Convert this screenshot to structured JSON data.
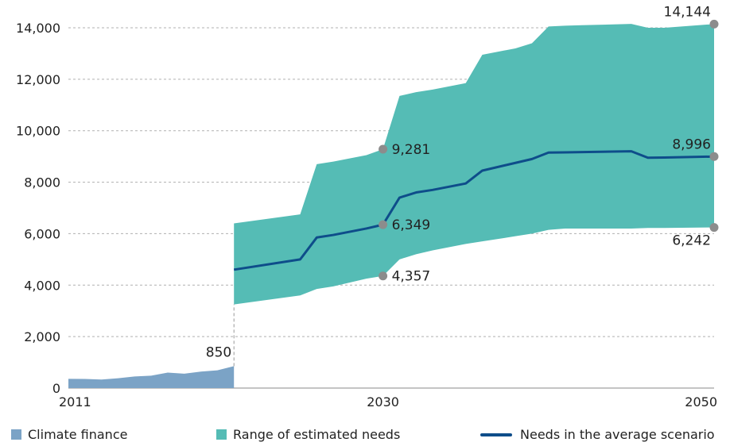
{
  "chart_data": {
    "type": "area",
    "title": "",
    "xlabel": "",
    "ylabel": "",
    "xlim": [
      2011,
      2050
    ],
    "ylim": [
      0,
      14000
    ],
    "x_ticks": [
      "2011",
      "2030",
      "2050"
    ],
    "y_ticks": [
      "0",
      "2,000",
      "4,000",
      "6,000",
      "8,000",
      "10,000",
      "12,000",
      "14,000"
    ],
    "grid": "horizontal dotted",
    "legend_position": "bottom",
    "series": [
      {
        "name": "Climate finance",
        "type": "area",
        "color": "#7ba3c6",
        "x": [
          2011,
          2012,
          2013,
          2014,
          2015,
          2016,
          2017,
          2018,
          2019,
          2020,
          2021
        ],
        "y": [
          360,
          355,
          330,
          380,
          450,
          480,
          600,
          560,
          640,
          690,
          850
        ]
      },
      {
        "name": "Range of estimated needs",
        "type": "range",
        "color": "#55bcb5",
        "x": [
          2021,
          2025,
          2026,
          2027,
          2029,
          2030,
          2031,
          2032,
          2033,
          2035,
          2036,
          2038,
          2039,
          2040,
          2041,
          2042,
          2045,
          2046,
          2047,
          2050
        ],
        "upper": [
          6400,
          6750,
          8700,
          8800,
          9050,
          9281,
          11350,
          11500,
          11600,
          11850,
          12950,
          13200,
          13400,
          14050,
          14080,
          14100,
          14150,
          14000,
          14000,
          14144
        ],
        "lower": [
          3250,
          3600,
          3850,
          3950,
          4250,
          4357,
          5000,
          5200,
          5350,
          5600,
          5700,
          5900,
          6000,
          6150,
          6200,
          6200,
          6200,
          6220,
          6220,
          6242
        ]
      },
      {
        "name": "Needs in the average scenario",
        "type": "line",
        "color": "#0e4d8a",
        "x": [
          2021,
          2025,
          2026,
          2027,
          2029,
          2030,
          2031,
          2032,
          2033,
          2035,
          2036,
          2038,
          2039,
          2040,
          2041,
          2045,
          2046,
          2047,
          2050
        ],
        "y": [
          4600,
          5000,
          5850,
          5950,
          6200,
          6349,
          7400,
          7600,
          7700,
          7950,
          8450,
          8750,
          8900,
          9150,
          9160,
          9200,
          8950,
          8960,
          8996
        ]
      }
    ],
    "annotations": [
      {
        "label": "850",
        "x": 2021,
        "y": 850,
        "marker": false,
        "anchor": "above-left"
      },
      {
        "label": "9,281",
        "x": 2030,
        "y": 9281,
        "marker": true,
        "anchor": "right"
      },
      {
        "label": "6,349",
        "x": 2030,
        "y": 6349,
        "marker": true,
        "anchor": "right"
      },
      {
        "label": "4,357",
        "x": 2030,
        "y": 4357,
        "marker": true,
        "anchor": "right"
      },
      {
        "label": "14,144",
        "x": 2050,
        "y": 14144,
        "marker": true,
        "anchor": "above-left"
      },
      {
        "label": "8,996",
        "x": 2050,
        "y": 8996,
        "marker": true,
        "anchor": "above-left"
      },
      {
        "label": "6,242",
        "x": 2050,
        "y": 6242,
        "marker": true,
        "anchor": "below-left"
      }
    ],
    "marker_color": "#8c8c8c"
  },
  "legend": {
    "items": [
      {
        "label": "Climate finance",
        "color": "#7ba3c6"
      },
      {
        "label": "Range of estimated needs",
        "color": "#55bcb5"
      },
      {
        "label": "Needs in the average scenario",
        "color": "#0e4d8a"
      }
    ]
  }
}
